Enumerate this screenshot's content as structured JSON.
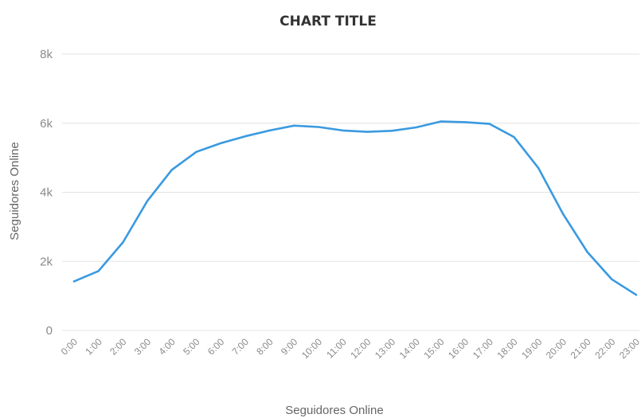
{
  "chart_data": {
    "type": "line",
    "title": "CHART TITLE",
    "xlabel": "Seguidores Online",
    "ylabel": "Seguidores Online",
    "categories": [
      "0:00",
      "1:00",
      "2:00",
      "3:00",
      "4:00",
      "5:00",
      "6:00",
      "7:00",
      "8:00",
      "9:00",
      "10:00",
      "11:00",
      "12:00",
      "13:00",
      "14:00",
      "15:00",
      "16:00",
      "17:00",
      "18:00",
      "19:00",
      "20:00",
      "21:00",
      "22:00",
      "23:00"
    ],
    "series": [
      {
        "values": [
          1420,
          1720,
          2550,
          3750,
          4650,
          5170,
          5420,
          5620,
          5790,
          5930,
          5890,
          5790,
          5750,
          5780,
          5880,
          6050,
          6030,
          5980,
          5600,
          4700,
          3380,
          2270,
          1480,
          1030
        ],
        "color": "#3a9ae0"
      }
    ],
    "ylim": [
      0,
      8000
    ],
    "yticks": [
      {
        "value": 0,
        "label": "0"
      },
      {
        "value": 2000,
        "label": "2k"
      },
      {
        "value": 4000,
        "label": "4k"
      },
      {
        "value": 6000,
        "label": "6k"
      },
      {
        "value": 8000,
        "label": "8k"
      }
    ],
    "grid": true,
    "legend": "none"
  }
}
